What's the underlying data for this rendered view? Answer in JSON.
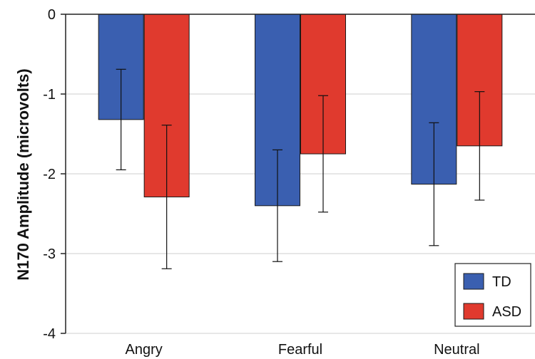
{
  "chart_data": {
    "type": "bar",
    "title": "",
    "xlabel": "",
    "ylabel": "N170 Amplitude (microvolts)",
    "categories": [
      "Angry",
      "Fearful",
      "Neutral"
    ],
    "series": [
      {
        "name": "TD",
        "color": "#3a5fb0",
        "values": [
          -1.32,
          -2.4,
          -2.13
        ],
        "error": [
          0.63,
          0.7,
          0.77
        ]
      },
      {
        "name": "ASD",
        "color": "#e03a2e",
        "values": [
          -2.29,
          -1.75,
          -1.65
        ],
        "error": [
          0.9,
          0.73,
          0.68
        ]
      }
    ],
    "ylim": [
      -4,
      0
    ],
    "yticks": [
      0,
      -1,
      -2,
      -3,
      -4
    ],
    "ytick_labels": [
      "0",
      "-1",
      "-2",
      "-3",
      "-4"
    ],
    "grid": true,
    "legend_position": "bottom-right"
  }
}
